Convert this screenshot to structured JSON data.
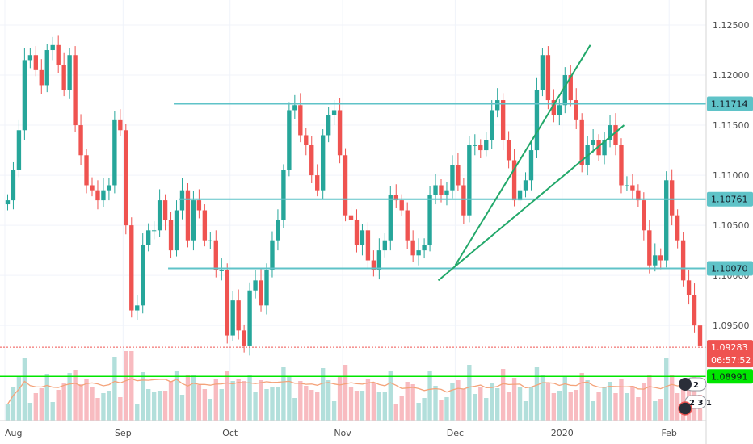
{
  "chart_data": {
    "type": "candlestick",
    "instrument_note": "",
    "x_tick_labels": [
      {
        "label": "Aug",
        "index": 0
      },
      {
        "label": "Sep",
        "index": 21
      },
      {
        "label": "Oct",
        "index": 40
      },
      {
        "label": "Nov",
        "index": 60
      },
      {
        "label": "Dec",
        "index": 80
      },
      {
        "label": "2020",
        "index": 99
      },
      {
        "label": "Feb",
        "index": 118
      }
    ],
    "y_ticks": [
      "1.12500",
      "1.12000",
      "1.11500",
      "1.11000",
      "1.10500",
      "1.10000",
      "1.09500"
    ],
    "y_tick_values": [
      1.125,
      1.12,
      1.115,
      1.11,
      1.105,
      1.1,
      1.095
    ],
    "ylim": [
      1.0855,
      1.1275
    ],
    "candles_count": 124,
    "closes": [
      1.1075,
      1.1105,
      1.1145,
      1.1215,
      1.122,
      1.1205,
      1.119,
      1.1225,
      1.123,
      1.121,
      1.1185,
      1.122,
      1.115,
      1.112,
      1.109,
      1.1085,
      1.1075,
      1.1085,
      1.109,
      1.1155,
      1.1145,
      1.105,
      1.0965,
      1.097,
      1.103,
      1.1045,
      1.1045,
      1.1075,
      1.1055,
      1.1025,
      1.1065,
      1.1085,
      1.1035,
      1.1075,
      1.1065,
      1.1035,
      1.1035,
      1.1005,
      1.1005,
      1.094,
      1.0975,
      1.0945,
      1.093,
      1.0985,
      1.0995,
      1.097,
      1.1005,
      1.1035,
      1.1055,
      1.1105,
      1.1165,
      1.117,
      1.114,
      1.113,
      1.11,
      1.1085,
      1.114,
      1.116,
      1.1165,
      1.112,
      1.106,
      1.1055,
      1.103,
      1.1045,
      1.1015,
      1.1005,
      1.1025,
      1.1035,
      1.108,
      1.1075,
      1.1065,
      1.1035,
      1.102,
      1.1025,
      1.103,
      1.108,
      1.109,
      1.108,
      1.1085,
      1.111,
      1.109,
      1.106,
      1.113,
      1.113,
      1.1125,
      1.1135,
      1.1165,
      1.1175,
      1.1135,
      1.1115,
      1.1075,
      1.1085,
      1.1095,
      1.1125,
      1.1185,
      1.122,
      1.1175,
      1.116,
      1.117,
      1.12,
      1.1175,
      1.1155,
      1.111,
      1.113,
      1.1135,
      1.112,
      1.1135,
      1.115,
      1.113,
      1.109,
      1.109,
      1.1085,
      1.1075,
      1.1045,
      1.101,
      1.102,
      1.1015,
      1.1095,
      1.106,
      1.1035,
      1.0995,
      1.098,
      1.095,
      1.093
    ],
    "horizontal_levels": [
      {
        "label": "1.11714",
        "value": 1.11714,
        "color": "#5fc3c8"
      },
      {
        "label": "1.10761",
        "value": 1.10761,
        "color": "#5fc3c8"
      },
      {
        "label": "1.10070",
        "value": 1.1007,
        "color": "#5fc3c8"
      }
    ],
    "current_price": {
      "label": "1.09283",
      "value": 1.09283,
      "color": "#ef5350"
    },
    "countdown": "06:57:52",
    "green_line": {
      "label": "1.08991",
      "value": 1.08991,
      "color": "#00e600"
    },
    "channel_lines": [
      {
        "name": "channel-upper",
        "from": {
          "i": 80,
          "p": 1.101
        },
        "to": {
          "i": 104,
          "p": 1.123
        }
      },
      {
        "name": "channel-lower",
        "from": {
          "i": 77,
          "p": 1.0995
        },
        "to": {
          "i": 110,
          "p": 1.115
        }
      }
    ],
    "badges": [
      {
        "text": "2"
      },
      {
        "text": "2 3 1"
      }
    ],
    "colors": {
      "up": "#26a69a",
      "down": "#ef5350",
      "volume_up": "#b2dfdb",
      "volume_down": "#f8bbc0",
      "ma": "#f4a37a"
    },
    "grid": true
  }
}
